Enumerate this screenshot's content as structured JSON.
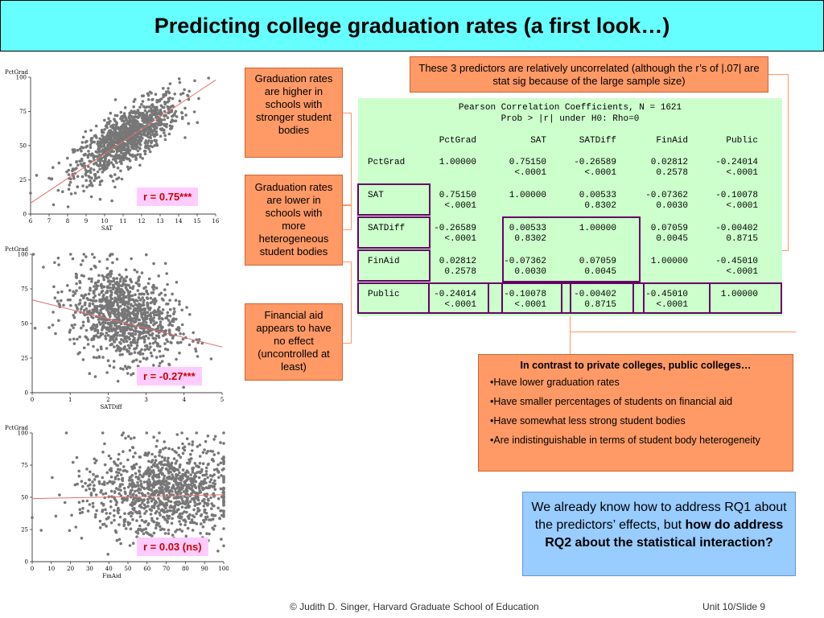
{
  "title": "Predicting college graduation rates (a first look…)",
  "plots": [
    {
      "ylabel": "PctGrad",
      "xlabel": "SAT",
      "badge": "r = 0.75***"
    },
    {
      "ylabel": "PctGrad",
      "xlabel": "SATDiff",
      "badge": "r = -0.27***"
    },
    {
      "ylabel": "PctGrad",
      "xlabel": "FinAid",
      "badge": "r = 0.03 (ns)"
    }
  ],
  "callouts": {
    "higher": "Graduation rates are higher in schools with stronger student bodies",
    "lower": "Graduation rates are lower in schools with more heterogeneous student bodies",
    "finaid": "Financial aid appears to have no effect (uncontrolled at least)",
    "uncorrelated": "These 3 predictors are   relatively uncorrelated (although the r’s of |.07| are stat sig because of the large sample size)"
  },
  "corr_table": {
    "heading1": "Pearson Correlation Coefficients, N = 1621",
    "heading2": "Prob > |r| under H0: Rho=0",
    "columns": [
      "PctGrad",
      "SAT",
      "SATDiff",
      "FinAid",
      "Public"
    ],
    "rows": [
      {
        "name": "PctGrad",
        "r": [
          "1.00000",
          "0.75150",
          "-0.26589",
          "0.02812",
          "-0.24014"
        ],
        "p": [
          "",
          "<.0001",
          "<.0001",
          "0.2578",
          "<.0001"
        ]
      },
      {
        "name": "SAT",
        "r": [
          "0.75150",
          "1.00000",
          "0.00533",
          "-0.07362",
          "-0.10078"
        ],
        "p": [
          "<.0001",
          "",
          "0.8302",
          "0.0030",
          "<.0001"
        ]
      },
      {
        "name": "SATDiff",
        "r": [
          "-0.26589",
          "0.00533",
          "1.00000",
          "0.07059",
          "-0.00402"
        ],
        "p": [
          "<.0001",
          "0.8302",
          "",
          "0.0045",
          "0.8715"
        ]
      },
      {
        "name": "FinAid",
        "r": [
          "0.02812",
          "-0.07362",
          "0.07059",
          "1.00000",
          "-0.45010"
        ],
        "p": [
          "0.2578",
          "0.0030",
          "0.0045",
          "",
          "<.0001"
        ]
      },
      {
        "name": "Public",
        "r": [
          "-0.24014",
          "-0.10078",
          "-0.00402",
          "-0.45010",
          "1.00000"
        ],
        "p": [
          "<.0001",
          "<.0001",
          "0.8715",
          "<.0001",
          ""
        ]
      }
    ]
  },
  "contrast": {
    "heading": "In contrast to private colleges, public colleges…",
    "bullets": [
      "Have lower graduation rates",
      "Have smaller percentages of students on financial aid",
      "Have somewhat less strong student bodies",
      "Are indistinguishable in terms of student body heterogeneity"
    ]
  },
  "question": {
    "plain": "We already know how to address RQ1 about the predictors’ effects, but ",
    "bold": "how do address RQ2 about the statistical interaction?"
  },
  "footer": {
    "credit": "© Judith D. Singer, Harvard Graduate School of Education",
    "slide": "Unit 10/Slide 9"
  },
  "colors": {
    "title_bg": "#66ffff",
    "callout": "#ff9966",
    "table_bg": "#ccffcc",
    "highlight_box": "#660066",
    "question_bg": "#99ccff",
    "badge_bg": "#ffccff",
    "badge_text": "#cc0000",
    "point": "#777777",
    "fit_line": "#e07070"
  },
  "chart_data": [
    {
      "type": "scatter",
      "xlabel": "SAT",
      "ylabel": "PctGrad",
      "xlim": [
        6,
        16
      ],
      "ylim": [
        0,
        100
      ],
      "xticks": [
        6,
        7,
        8,
        9,
        10,
        11,
        12,
        13,
        14,
        15,
        16
      ],
      "yticks": [
        0,
        25,
        50,
        75,
        100
      ],
      "fit": {
        "x": [
          6,
          16
        ],
        "y": [
          8,
          98
        ]
      },
      "n": 1621,
      "r": 0.75,
      "center": [
        11.2,
        56
      ],
      "spread": [
        1.4,
        15
      ]
    },
    {
      "type": "scatter",
      "xlabel": "SATDiff",
      "ylabel": "PctGrad",
      "xlim": [
        0,
        5
      ],
      "ylim": [
        0,
        100
      ],
      "xticks": [
        0,
        1,
        2,
        3,
        4,
        5
      ],
      "yticks": [
        0,
        25,
        50,
        75,
        100
      ],
      "fit": {
        "x": [
          0,
          5
        ],
        "y": [
          67,
          33
        ]
      },
      "n": 1621,
      "r": -0.27,
      "center": [
        2.4,
        56
      ],
      "spread": [
        0.7,
        17
      ]
    },
    {
      "type": "scatter",
      "xlabel": "FinAid",
      "ylabel": "PctGrad",
      "xlim": [
        0,
        100
      ],
      "ylim": [
        0,
        100
      ],
      "xticks": [
        0,
        10,
        20,
        30,
        40,
        50,
        60,
        70,
        80,
        90,
        100
      ],
      "yticks": [
        0,
        25,
        50,
        75,
        100
      ],
      "fit": {
        "x": [
          0,
          100
        ],
        "y": [
          49,
          52
        ]
      },
      "n": 1621,
      "r": 0.03,
      "center": [
        72,
        55
      ],
      "spread": [
        17,
        17
      ]
    }
  ]
}
